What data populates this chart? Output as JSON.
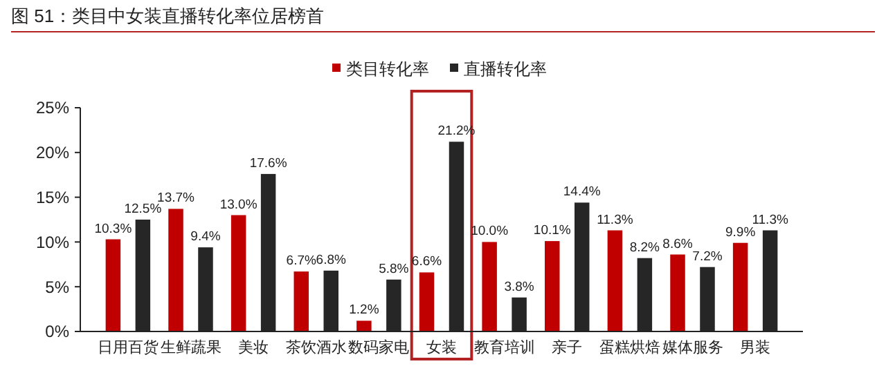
{
  "chart_data": {
    "type": "bar",
    "title": "图 51：类目中女装直播转化率位居榜首",
    "categories": [
      "日用百货",
      "生鲜蔬果",
      "美妆",
      "茶饮酒水",
      "数码家电",
      "女装",
      "教育培训",
      "亲子",
      "蛋糕烘焙",
      "媒体服务",
      "男装"
    ],
    "series": [
      {
        "name": "类目转化率",
        "color": "#c00000",
        "values": [
          10.3,
          13.7,
          13.0,
          6.7,
          1.2,
          6.6,
          10.0,
          10.1,
          11.3,
          8.6,
          9.9
        ],
        "value_labels": [
          "10.3%",
          "13.7%",
          "13.0%",
          "6.7%",
          "1.2%",
          "6.6%",
          "10.0%",
          "10.1%",
          "11.3%",
          "8.6%",
          "9.9%"
        ]
      },
      {
        "name": "直播转化率",
        "color": "#262626",
        "values": [
          12.5,
          9.4,
          17.6,
          6.8,
          5.8,
          21.2,
          3.8,
          14.4,
          8.2,
          7.2,
          11.3
        ],
        "value_labels": [
          "12.5%",
          "9.4%",
          "17.6%",
          "6.8%",
          "5.8%",
          "21.2%",
          "3.8%",
          "14.4%",
          "8.2%",
          "7.2%",
          "11.3%"
        ]
      }
    ],
    "ylim": [
      0,
      25
    ],
    "yticks": [
      {
        "value": 0,
        "label": "0%"
      },
      {
        "value": 5,
        "label": "5%"
      },
      {
        "value": 10,
        "label": "10%"
      },
      {
        "value": 15,
        "label": "15%"
      },
      {
        "value": 20,
        "label": "20%"
      },
      {
        "value": 25,
        "label": "25%"
      }
    ],
    "legend": "top",
    "grid": false
  }
}
